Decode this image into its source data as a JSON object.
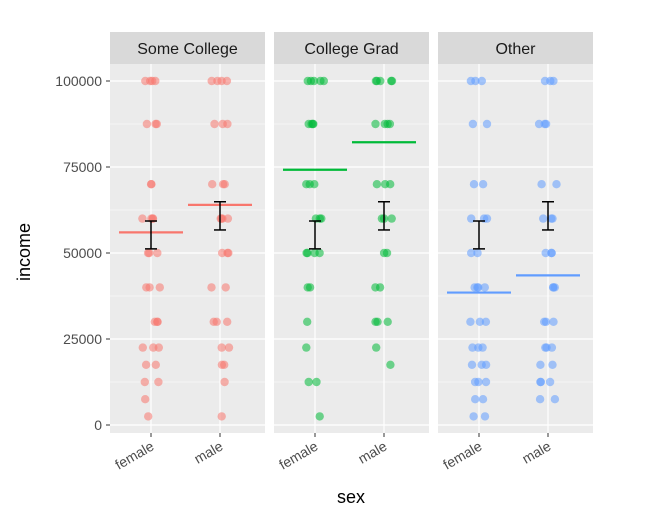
{
  "chart_data": {
    "type": "scatter",
    "facet_by": "education",
    "panels": [
      "Some College",
      "College Grad",
      "Other"
    ],
    "categories": [
      "female",
      "male"
    ],
    "xlabel": "sex",
    "ylabel": "income",
    "ylim": [
      0,
      110000
    ],
    "yticks": [
      0,
      25000,
      50000,
      75000,
      100000
    ],
    "ytick_labels": [
      "0",
      "25000",
      "50000",
      "75000",
      "100000"
    ],
    "grid": true,
    "colors": {
      "Some College": "#F8766D",
      "College Grad": "#00BA38",
      "Other": "#619CFF",
      "panel_bg": "#EBEBEB",
      "strip_bg": "#D9D9D9",
      "grid": "#FFFFFF",
      "error_bar": "#000000"
    },
    "points": {
      "Some College": {
        "female": [
          100000,
          100000,
          100000,
          100000,
          87500,
          87500,
          87500,
          70000,
          70000,
          60000,
          60000,
          60000,
          60000,
          50000,
          50000,
          50000,
          40000,
          40000,
          40000,
          30000,
          30000,
          30000,
          22500,
          22500,
          22500,
          17500,
          17500,
          12500,
          12500,
          7500,
          2500
        ],
        "male": [
          100000,
          100000,
          100000,
          100000,
          87500,
          87500,
          87500,
          70000,
          70000,
          70000,
          60000,
          60000,
          60000,
          60000,
          50000,
          50000,
          50000,
          40000,
          40000,
          30000,
          30000,
          30000,
          22500,
          22500,
          17500,
          17500,
          12500,
          2500
        ]
      },
      "College Grad": {
        "female": [
          100000,
          100000,
          100000,
          100000,
          100000,
          87500,
          87500,
          87500,
          87500,
          70000,
          70000,
          70000,
          60000,
          60000,
          60000,
          50000,
          50000,
          50000,
          50000,
          40000,
          40000,
          30000,
          22500,
          12500,
          12500,
          2500
        ],
        "male": [
          100000,
          100000,
          100000,
          100000,
          100000,
          87500,
          87500,
          87500,
          87500,
          70000,
          70000,
          70000,
          60000,
          60000,
          60000,
          50000,
          50000,
          40000,
          40000,
          30000,
          30000,
          30000,
          22500,
          17500
        ]
      },
      "Other": {
        "female": [
          100000,
          100000,
          100000,
          87500,
          87500,
          70000,
          70000,
          60000,
          60000,
          60000,
          50000,
          50000,
          40000,
          40000,
          40000,
          40000,
          30000,
          30000,
          30000,
          22500,
          22500,
          22500,
          17500,
          17500,
          17500,
          12500,
          12500,
          12500,
          7500,
          7500,
          2500,
          2500
        ],
        "male": [
          100000,
          100000,
          100000,
          87500,
          87500,
          87500,
          70000,
          70000,
          60000,
          60000,
          60000,
          50000,
          50000,
          50000,
          40000,
          40000,
          40000,
          30000,
          30000,
          30000,
          22500,
          22500,
          22500,
          17500,
          17500,
          12500,
          12500,
          12500,
          7500,
          7500
        ]
      }
    },
    "group_means": {
      "Some College": {
        "female": 56000,
        "male": 64000
      },
      "College Grad": {
        "female": 74200,
        "male": 82200
      },
      "Other": {
        "female": 38500,
        "male": 43500
      }
    },
    "error_bars": {
      "Some College": {
        "female": {
          "mean": 55200,
          "lower": 51200,
          "upper": 59300
        },
        "male": {
          "mean": 60800,
          "lower": 56700,
          "upper": 64900
        }
      },
      "College Grad": {
        "female": {
          "mean": 55200,
          "lower": 51200,
          "upper": 59300
        },
        "male": {
          "mean": 60800,
          "lower": 56700,
          "upper": 64900
        }
      },
      "Other": {
        "female": {
          "mean": 55200,
          "lower": 51200,
          "upper": 59300
        },
        "male": {
          "mean": 60800,
          "lower": 56700,
          "upper": 64900
        }
      }
    }
  }
}
